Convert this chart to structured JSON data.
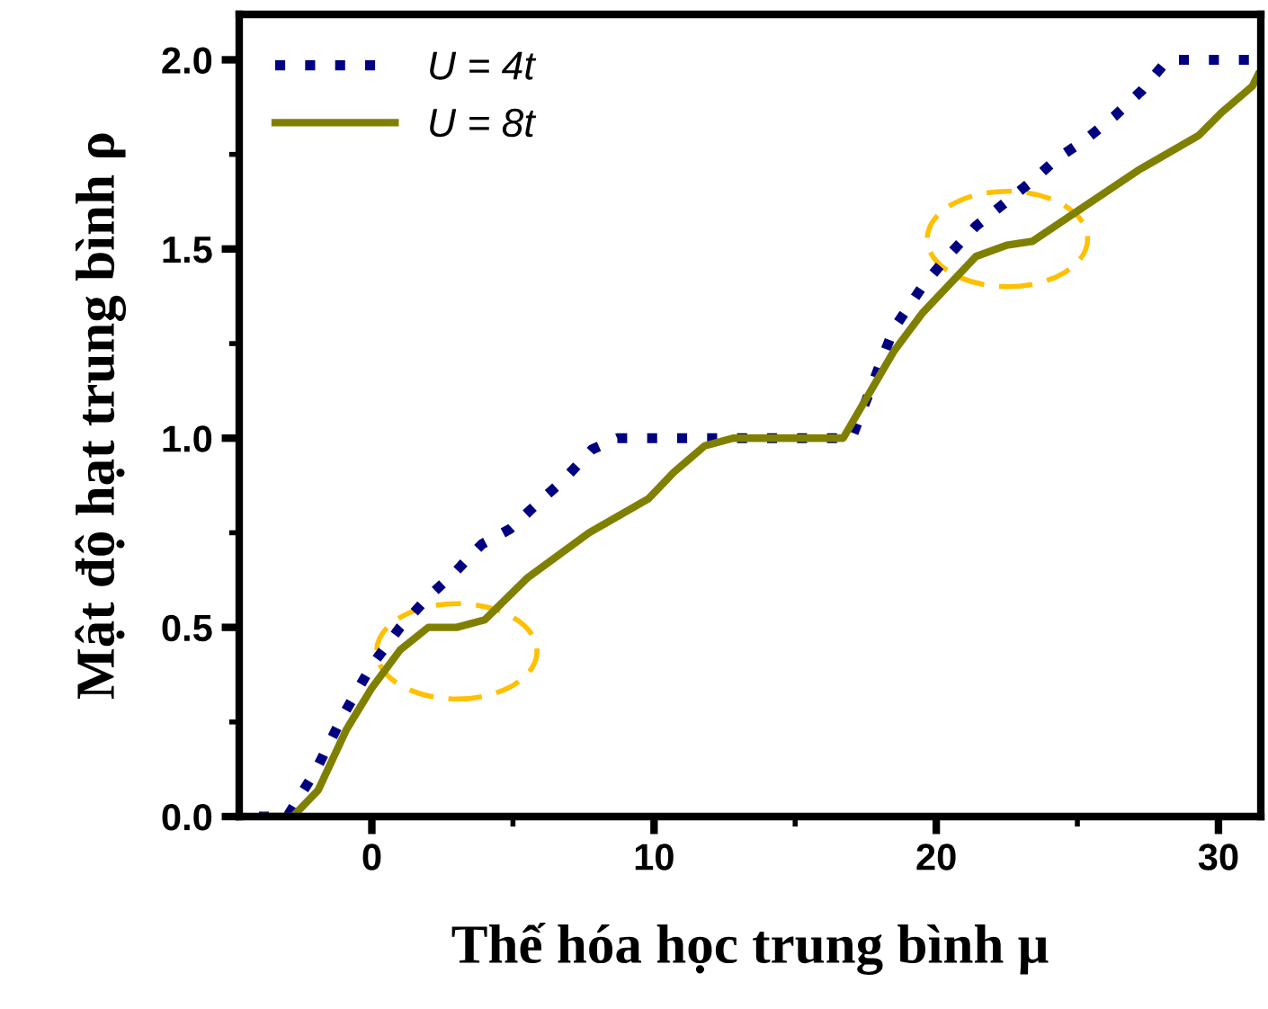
{
  "chart_data": {
    "type": "line",
    "xlabel": "Thế hóa học trung bình μ",
    "ylabel": "Mật độ hạt trung bình ρ",
    "xlim": [
      -4.7,
      31.5
    ],
    "ylim": [
      0,
      2.12
    ],
    "xticks": [
      0,
      10,
      20,
      30
    ],
    "yticks": [
      {
        "value": 0,
        "label": "0.0"
      },
      {
        "value": 0.5,
        "label": "0.5"
      },
      {
        "value": 1,
        "label": "1.0"
      },
      {
        "value": 1.5,
        "label": "1.5"
      },
      {
        "value": 2,
        "label": "2.0"
      }
    ],
    "grid": false,
    "legend": "top left",
    "marker": "none",
    "series": [
      {
        "name": "U = 4t",
        "color": "#000080",
        "line_style": "dotted",
        "x": [
          -4,
          -3,
          -2,
          -1,
          0,
          1,
          2,
          3,
          3.9,
          4.9,
          5.9,
          6.8,
          7.8,
          8.7,
          13,
          17,
          18.5,
          19.5,
          20.4,
          21.4,
          22.4,
          23.4,
          24.3,
          25.3,
          26.3,
          27.3,
          28.2,
          31.4
        ],
        "values": [
          0,
          0,
          0.12,
          0.27,
          0.4,
          0.5,
          0.58,
          0.65,
          0.72,
          0.76,
          0.83,
          0.89,
          0.97,
          1.0,
          1.0,
          1.0,
          1.29,
          1.4,
          1.48,
          1.56,
          1.62,
          1.68,
          1.74,
          1.79,
          1.85,
          1.92,
          2.0,
          2.0
        ]
      },
      {
        "name": "U = 8t",
        "color": "#808000",
        "line_style": "solid",
        "x": [
          -3.8,
          -2.8,
          -1.9,
          -0.9,
          0,
          1,
          2,
          3,
          4,
          5.5,
          7.7,
          9.8,
          10.7,
          11.8,
          12.8,
          16.7,
          18.5,
          19.5,
          21.4,
          22.5,
          23.4,
          25,
          27.2,
          29.3,
          30.1,
          31.2,
          31.4
        ],
        "values": [
          0,
          0,
          0.07,
          0.23,
          0.34,
          0.44,
          0.5,
          0.5,
          0.52,
          0.63,
          0.75,
          0.84,
          0.91,
          0.98,
          1.0,
          1.0,
          1.23,
          1.33,
          1.48,
          1.51,
          1.52,
          1.6,
          1.71,
          1.8,
          1.86,
          1.93,
          1.96
        ]
      }
    ]
  }
}
